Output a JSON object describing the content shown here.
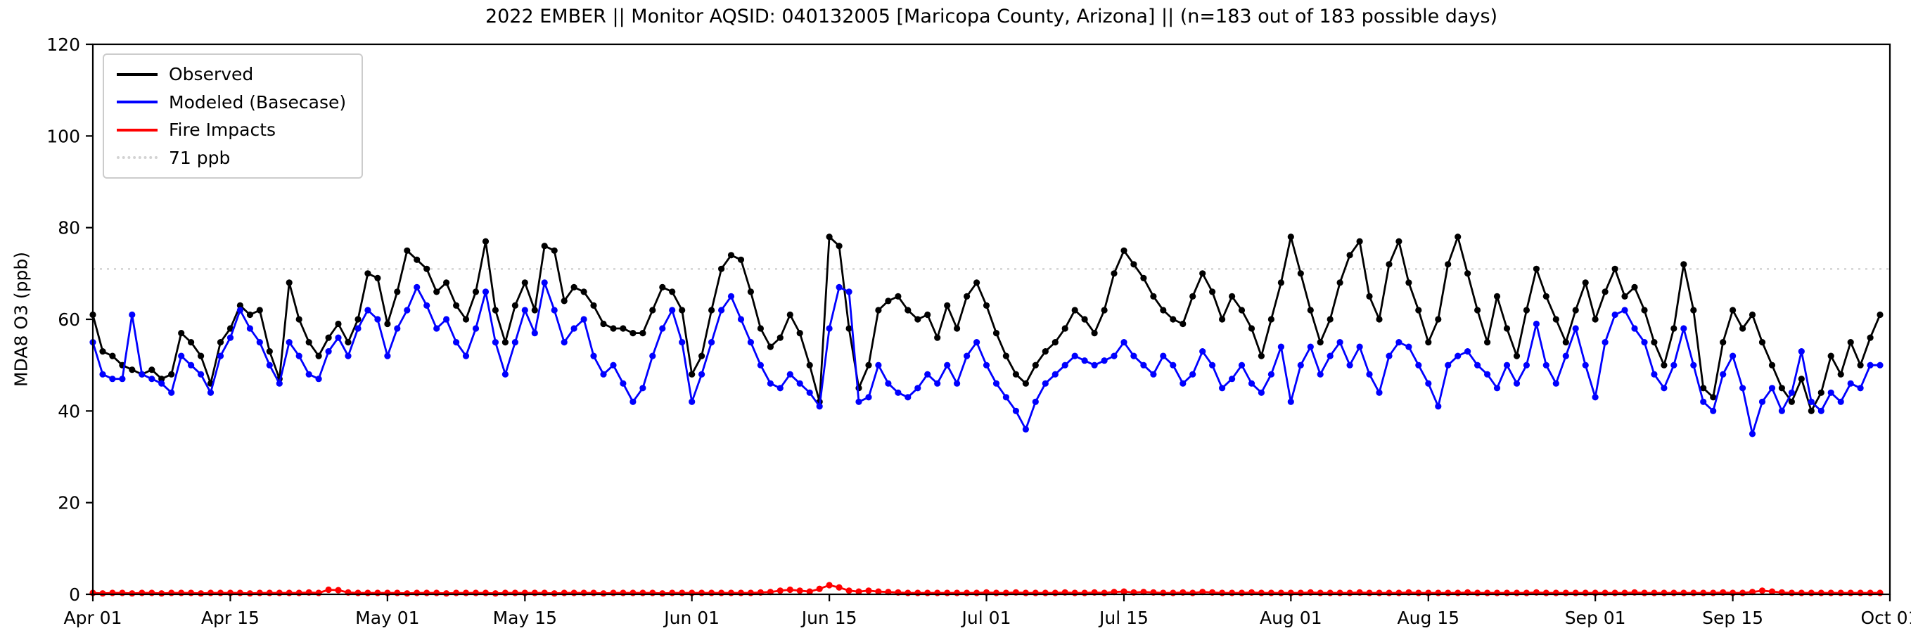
{
  "legend": [
    {
      "label": "Observed",
      "color": "#000000",
      "linestyle": "solid"
    },
    {
      "label": "Modeled (Basecase)",
      "color": "#0000ff",
      "linestyle": "solid"
    },
    {
      "label": "Fire Impacts",
      "color": "#ff0000",
      "linestyle": "solid"
    },
    {
      "label": "71 ppb",
      "color": "#d3d3d3",
      "linestyle": "dotted"
    }
  ],
  "chart_data": {
    "type": "line",
    "title": "2022 EMBER || Monitor AQSID: 040132005 [Maricopa County, Arizona] || (n=183 out of 183 possible days)",
    "ylabel": "MDA8 O3 (ppb)",
    "xlabel": "",
    "ylim": [
      0,
      120
    ],
    "yticks": [
      0,
      20,
      40,
      60,
      80,
      100,
      120
    ],
    "n_days": 183,
    "x_start": "Apr 01",
    "x_end": "Oct 01",
    "xticks": {
      "day_offsets": [
        0,
        14,
        30,
        44,
        61,
        75,
        91,
        105,
        122,
        136,
        153,
        167,
        183
      ],
      "labels": [
        "Apr 01",
        "Apr 15",
        "May 01",
        "May 15",
        "Jun 01",
        "Jun 15",
        "Jul 01",
        "Jul 15",
        "Aug 01",
        "Aug 15",
        "Sep 01",
        "Sep 15",
        "Oct 01"
      ]
    },
    "threshold": {
      "value": 71,
      "label": "71 ppb",
      "color": "#d3d3d3"
    },
    "grid": false,
    "legend_position": "upper left",
    "series": [
      {
        "name": "Observed",
        "color": "#000000",
        "marker": "circle",
        "values": [
          61,
          53,
          52,
          50,
          49,
          48,
          49,
          47,
          48,
          57,
          55,
          52,
          46,
          55,
          58,
          63,
          61,
          62,
          53,
          47,
          68,
          60,
          55,
          52,
          56,
          59,
          55,
          60,
          70,
          69,
          59,
          66,
          75,
          73,
          71,
          66,
          68,
          63,
          60,
          66,
          77,
          62,
          55,
          63,
          68,
          62,
          76,
          75,
          64,
          67,
          66,
          63,
          59,
          58,
          58,
          57,
          57,
          62,
          67,
          66,
          62,
          48,
          52,
          62,
          71,
          74,
          73,
          66,
          58,
          54,
          56,
          61,
          57,
          50,
          42,
          78,
          76,
          58,
          45,
          50,
          62,
          64,
          65,
          62,
          60,
          61,
          56,
          63,
          58,
          65,
          68,
          63,
          57,
          52,
          48,
          46,
          50,
          53,
          55,
          58,
          62,
          60,
          57,
          62,
          70,
          75,
          72,
          69,
          65,
          62,
          60,
          59,
          65,
          70,
          66,
          60,
          65,
          62,
          58,
          52,
          60,
          68,
          78,
          70,
          62,
          55,
          60,
          68,
          74,
          77,
          65,
          60,
          72,
          77,
          68,
          62,
          55,
          60,
          72,
          78,
          70,
          62,
          55,
          65,
          58,
          52,
          62,
          71,
          65,
          60,
          55,
          62,
          68,
          60,
          66,
          71,
          65,
          67,
          62,
          55,
          50,
          58,
          72,
          62,
          45,
          43,
          55,
          62,
          58,
          61,
          55,
          50,
          45,
          42,
          47,
          40,
          44,
          52,
          48,
          55,
          50,
          56,
          61
        ]
      },
      {
        "name": "Modeled (Basecase)",
        "color": "#0000ff",
        "marker": "circle",
        "values": [
          55,
          48,
          47,
          47,
          61,
          48,
          47,
          46,
          44,
          52,
          50,
          48,
          44,
          52,
          56,
          62,
          58,
          55,
          50,
          46,
          55,
          52,
          48,
          47,
          53,
          56,
          52,
          58,
          62,
          60,
          52,
          58,
          62,
          67,
          63,
          58,
          60,
          55,
          52,
          58,
          66,
          55,
          48,
          55,
          62,
          57,
          68,
          62,
          55,
          58,
          60,
          52,
          48,
          50,
          46,
          42,
          45,
          52,
          58,
          62,
          55,
          42,
          48,
          55,
          62,
          65,
          60,
          55,
          50,
          46,
          45,
          48,
          46,
          44,
          41,
          58,
          67,
          66,
          42,
          43,
          50,
          46,
          44,
          43,
          45,
          48,
          46,
          50,
          46,
          52,
          55,
          50,
          46,
          43,
          40,
          36,
          42,
          46,
          48,
          50,
          52,
          51,
          50,
          51,
          52,
          55,
          52,
          50,
          48,
          52,
          50,
          46,
          48,
          53,
          50,
          45,
          47,
          50,
          46,
          44,
          48,
          54,
          42,
          50,
          54,
          48,
          52,
          55,
          50,
          54,
          48,
          44,
          52,
          55,
          54,
          50,
          46,
          41,
          50,
          52,
          53,
          50,
          48,
          45,
          50,
          46,
          50,
          59,
          50,
          46,
          52,
          58,
          50,
          43,
          55,
          61,
          62,
          58,
          55,
          48,
          45,
          50,
          58,
          50,
          42,
          40,
          48,
          52,
          45,
          35,
          42,
          45,
          40,
          44,
          53,
          42,
          40,
          44,
          42,
          46,
          45,
          50,
          50
        ]
      },
      {
        "name": "Fire Impacts",
        "color": "#ff0000",
        "marker": "circle",
        "values": [
          0.3,
          0.2,
          0.3,
          0.3,
          0.2,
          0.3,
          0.3,
          0.2,
          0.3,
          0.3,
          0.3,
          0.2,
          0.3,
          0.3,
          0.3,
          0.3,
          0.2,
          0.3,
          0.3,
          0.3,
          0.3,
          0.3,
          0.4,
          0.3,
          1.0,
          0.9,
          0.4,
          0.3,
          0.3,
          0.3,
          0.3,
          0.3,
          0.2,
          0.3,
          0.3,
          0.3,
          0.2,
          0.3,
          0.3,
          0.3,
          0.3,
          0.2,
          0.3,
          0.3,
          0.3,
          0.3,
          0.3,
          0.2,
          0.3,
          0.3,
          0.3,
          0.3,
          0.2,
          0.3,
          0.3,
          0.3,
          0.3,
          0.3,
          0.2,
          0.3,
          0.3,
          0.3,
          0.3,
          0.3,
          0.3,
          0.3,
          0.3,
          0.3,
          0.4,
          0.5,
          0.8,
          1.0,
          0.8,
          0.6,
          1.2,
          2.0,
          1.5,
          0.8,
          0.6,
          0.8,
          0.6,
          0.5,
          0.4,
          0.3,
          0.3,
          0.3,
          0.3,
          0.3,
          0.3,
          0.3,
          0.3,
          0.4,
          0.3,
          0.3,
          0.4,
          0.3,
          0.3,
          0.3,
          0.3,
          0.4,
          0.3,
          0.3,
          0.4,
          0.3,
          0.5,
          0.6,
          0.4,
          0.5,
          0.4,
          0.3,
          0.3,
          0.4,
          0.3,
          0.5,
          0.4,
          0.3,
          0.3,
          0.3,
          0.4,
          0.3,
          0.3,
          0.3,
          0.3,
          0.3,
          0.4,
          0.3,
          0.3,
          0.3,
          0.3,
          0.4,
          0.3,
          0.3,
          0.3,
          0.3,
          0.4,
          0.3,
          0.3,
          0.3,
          0.3,
          0.3,
          0.4,
          0.3,
          0.3,
          0.3,
          0.3,
          0.3,
          0.3,
          0.4,
          0.3,
          0.3,
          0.3,
          0.3,
          0.3,
          0.3,
          0.3,
          0.3,
          0.3,
          0.4,
          0.3,
          0.3,
          0.3,
          0.3,
          0.3,
          0.3,
          0.3,
          0.3,
          0.4,
          0.3,
          0.3,
          0.5,
          0.8,
          0.6,
          0.4,
          0.3,
          0.3,
          0.3,
          0.3,
          0.3,
          0.3,
          0.3,
          0.3,
          0.3,
          0.3
        ]
      }
    ]
  }
}
